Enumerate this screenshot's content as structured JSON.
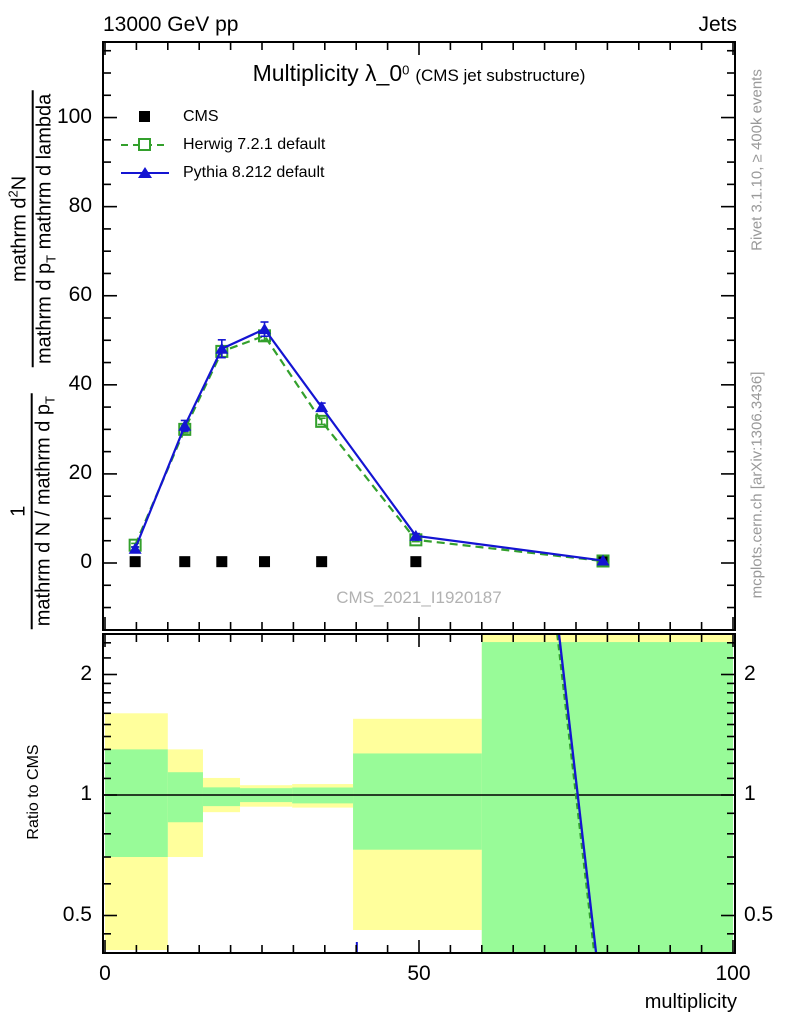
{
  "header": {
    "left": "13000 GeV pp",
    "right": "Jets"
  },
  "title": {
    "main": "Multiplicity λ_0",
    "sup": "0",
    "paren": "(CMS jet substructure)"
  },
  "legend": [
    {
      "label": "CMS",
      "marker": "black-filled-square",
      "line": "none"
    },
    {
      "label": "Herwig 7.2.1 default",
      "marker": "green-open-square",
      "line": "dashed"
    },
    {
      "label": "Pythia 8.212 default",
      "marker": "blue-filled-triangle",
      "line": "solid"
    }
  ],
  "ylabel": {
    "f1num": "1",
    "f1den": "mathrm d N / mathrm d p",
    "f1sub": "T",
    "f2num_a": "mathrm d",
    "f2sup": "2",
    "f2num_b": "N",
    "f2den_a": "mathrm d p",
    "f2sub": "T",
    "f2den_b": " mathrm d lambda"
  },
  "ratio_ylabel": "Ratio to CMS",
  "xlabel": "multiplicity",
  "watermark": "CMS_2021_I1920187",
  "credits": {
    "top": "Rivet 3.1.10, ≥ 400k events",
    "bottom": "mcplots.cern.ch [arXiv:1306.3436]"
  },
  "colors": {
    "cms": "#000000",
    "herwig": "#33a02c",
    "pythia": "#1414d2",
    "band_yellow": "#ffff9c",
    "band_green": "#98fb98",
    "credit_gray": "#999999",
    "watermark_gray": "#b2b2b2"
  },
  "chart_data": {
    "type": "line",
    "title": "Multiplicity λ_0^0 (CMS jet substructure)",
    "xlabel": "multiplicity",
    "ylabel": "1 / mathrm d N / mathrm d p_T · mathrm d^2 N / mathrm d p_T mathrm d lambda",
    "x_axis": {
      "min": -0.32,
      "max": 100.32,
      "minor_step": 5,
      "majors": [
        {
          "m": 0,
          "label": "0"
        },
        {
          "m": 50,
          "label": "50"
        },
        {
          "m": 100,
          "label": "100"
        }
      ]
    },
    "main_axis": {
      "min": -15,
      "max": 117.5,
      "minor_step": 5,
      "majors": [
        {
          "v": 0,
          "label": "0"
        },
        {
          "v": 20,
          "label": "20"
        },
        {
          "v": 40,
          "label": "40"
        },
        {
          "v": 60,
          "label": "60"
        },
        {
          "v": 80,
          "label": "80"
        },
        {
          "v": 100,
          "label": "100"
        }
      ]
    },
    "ratio_axis": {
      "scale": "log2",
      "min": 0.403,
      "max": 2.524,
      "majors": [
        {
          "r": 2,
          "label": "2"
        },
        {
          "r": 1,
          "label": "1"
        },
        {
          "r": 0.5,
          "label": "0.5"
        }
      ],
      "minors": [
        0.45,
        0.6,
        0.7,
        0.8,
        0.9,
        1.1,
        1.2,
        1.3,
        1.4,
        1.5,
        1.6,
        1.7,
        1.8,
        1.9,
        2.2,
        2.4
      ]
    },
    "x": [
      4.8,
      12.7,
      18.6,
      25.4,
      34.5,
      49.5,
      79.3
    ],
    "series": [
      {
        "name": "CMS",
        "type": "markers-only",
        "marker": "square-filled",
        "values": [
          0.3,
          0.3,
          0.3,
          0.3,
          0.3,
          0.3,
          0.3
        ],
        "errors": [
          0,
          0,
          0,
          0,
          0,
          0,
          0
        ]
      },
      {
        "name": "Herwig 7.2.1 default",
        "type": "dashed-line",
        "marker": "square-open",
        "values": [
          4.0,
          30.0,
          47.5,
          51.0,
          31.8,
          5.2,
          0.45
        ],
        "errors": [
          0.4,
          0.8,
          1.2,
          1.0,
          0.7,
          0.4,
          0.15
        ]
      },
      {
        "name": "Pythia 8.212 default",
        "type": "solid-line",
        "marker": "triangle-up",
        "values": [
          3.2,
          30.8,
          48.1,
          52.5,
          35.0,
          6.1,
          0.55
        ],
        "errors": [
          0.4,
          1.2,
          2.0,
          1.6,
          0.9,
          0.5,
          0.15
        ]
      }
    ],
    "ratio_bands": {
      "edges": [
        0,
        10,
        15.6,
        21.5,
        29.8,
        39.5,
        60,
        100
      ],
      "yellow": [
        [
          0.41,
          1.6
        ],
        [
          0.7,
          1.3
        ],
        [
          0.906,
          1.103
        ],
        [
          0.935,
          1.058
        ],
        [
          0.93,
          1.065
        ],
        [
          0.46,
          1.55
        ],
        [
          0.36,
          2.6
        ]
      ],
      "green": [
        [
          0.7,
          1.3
        ],
        [
          0.855,
          1.14
        ],
        [
          0.938,
          1.045
        ],
        [
          0.96,
          1.04
        ],
        [
          0.953,
          1.044
        ],
        [
          0.73,
          1.27
        ],
        [
          0.36,
          2.41
        ]
      ]
    },
    "ratio_unity": 1,
    "ratio_lines": {
      "pythia": [
        [
          72.3,
          2.52
        ],
        [
          78.2,
          0.403
        ]
      ],
      "herwig": [
        [
          72.0,
          2.52
        ],
        [
          77.9,
          0.403
        ]
      ],
      "pythia_stub_x": 40.1
    }
  }
}
